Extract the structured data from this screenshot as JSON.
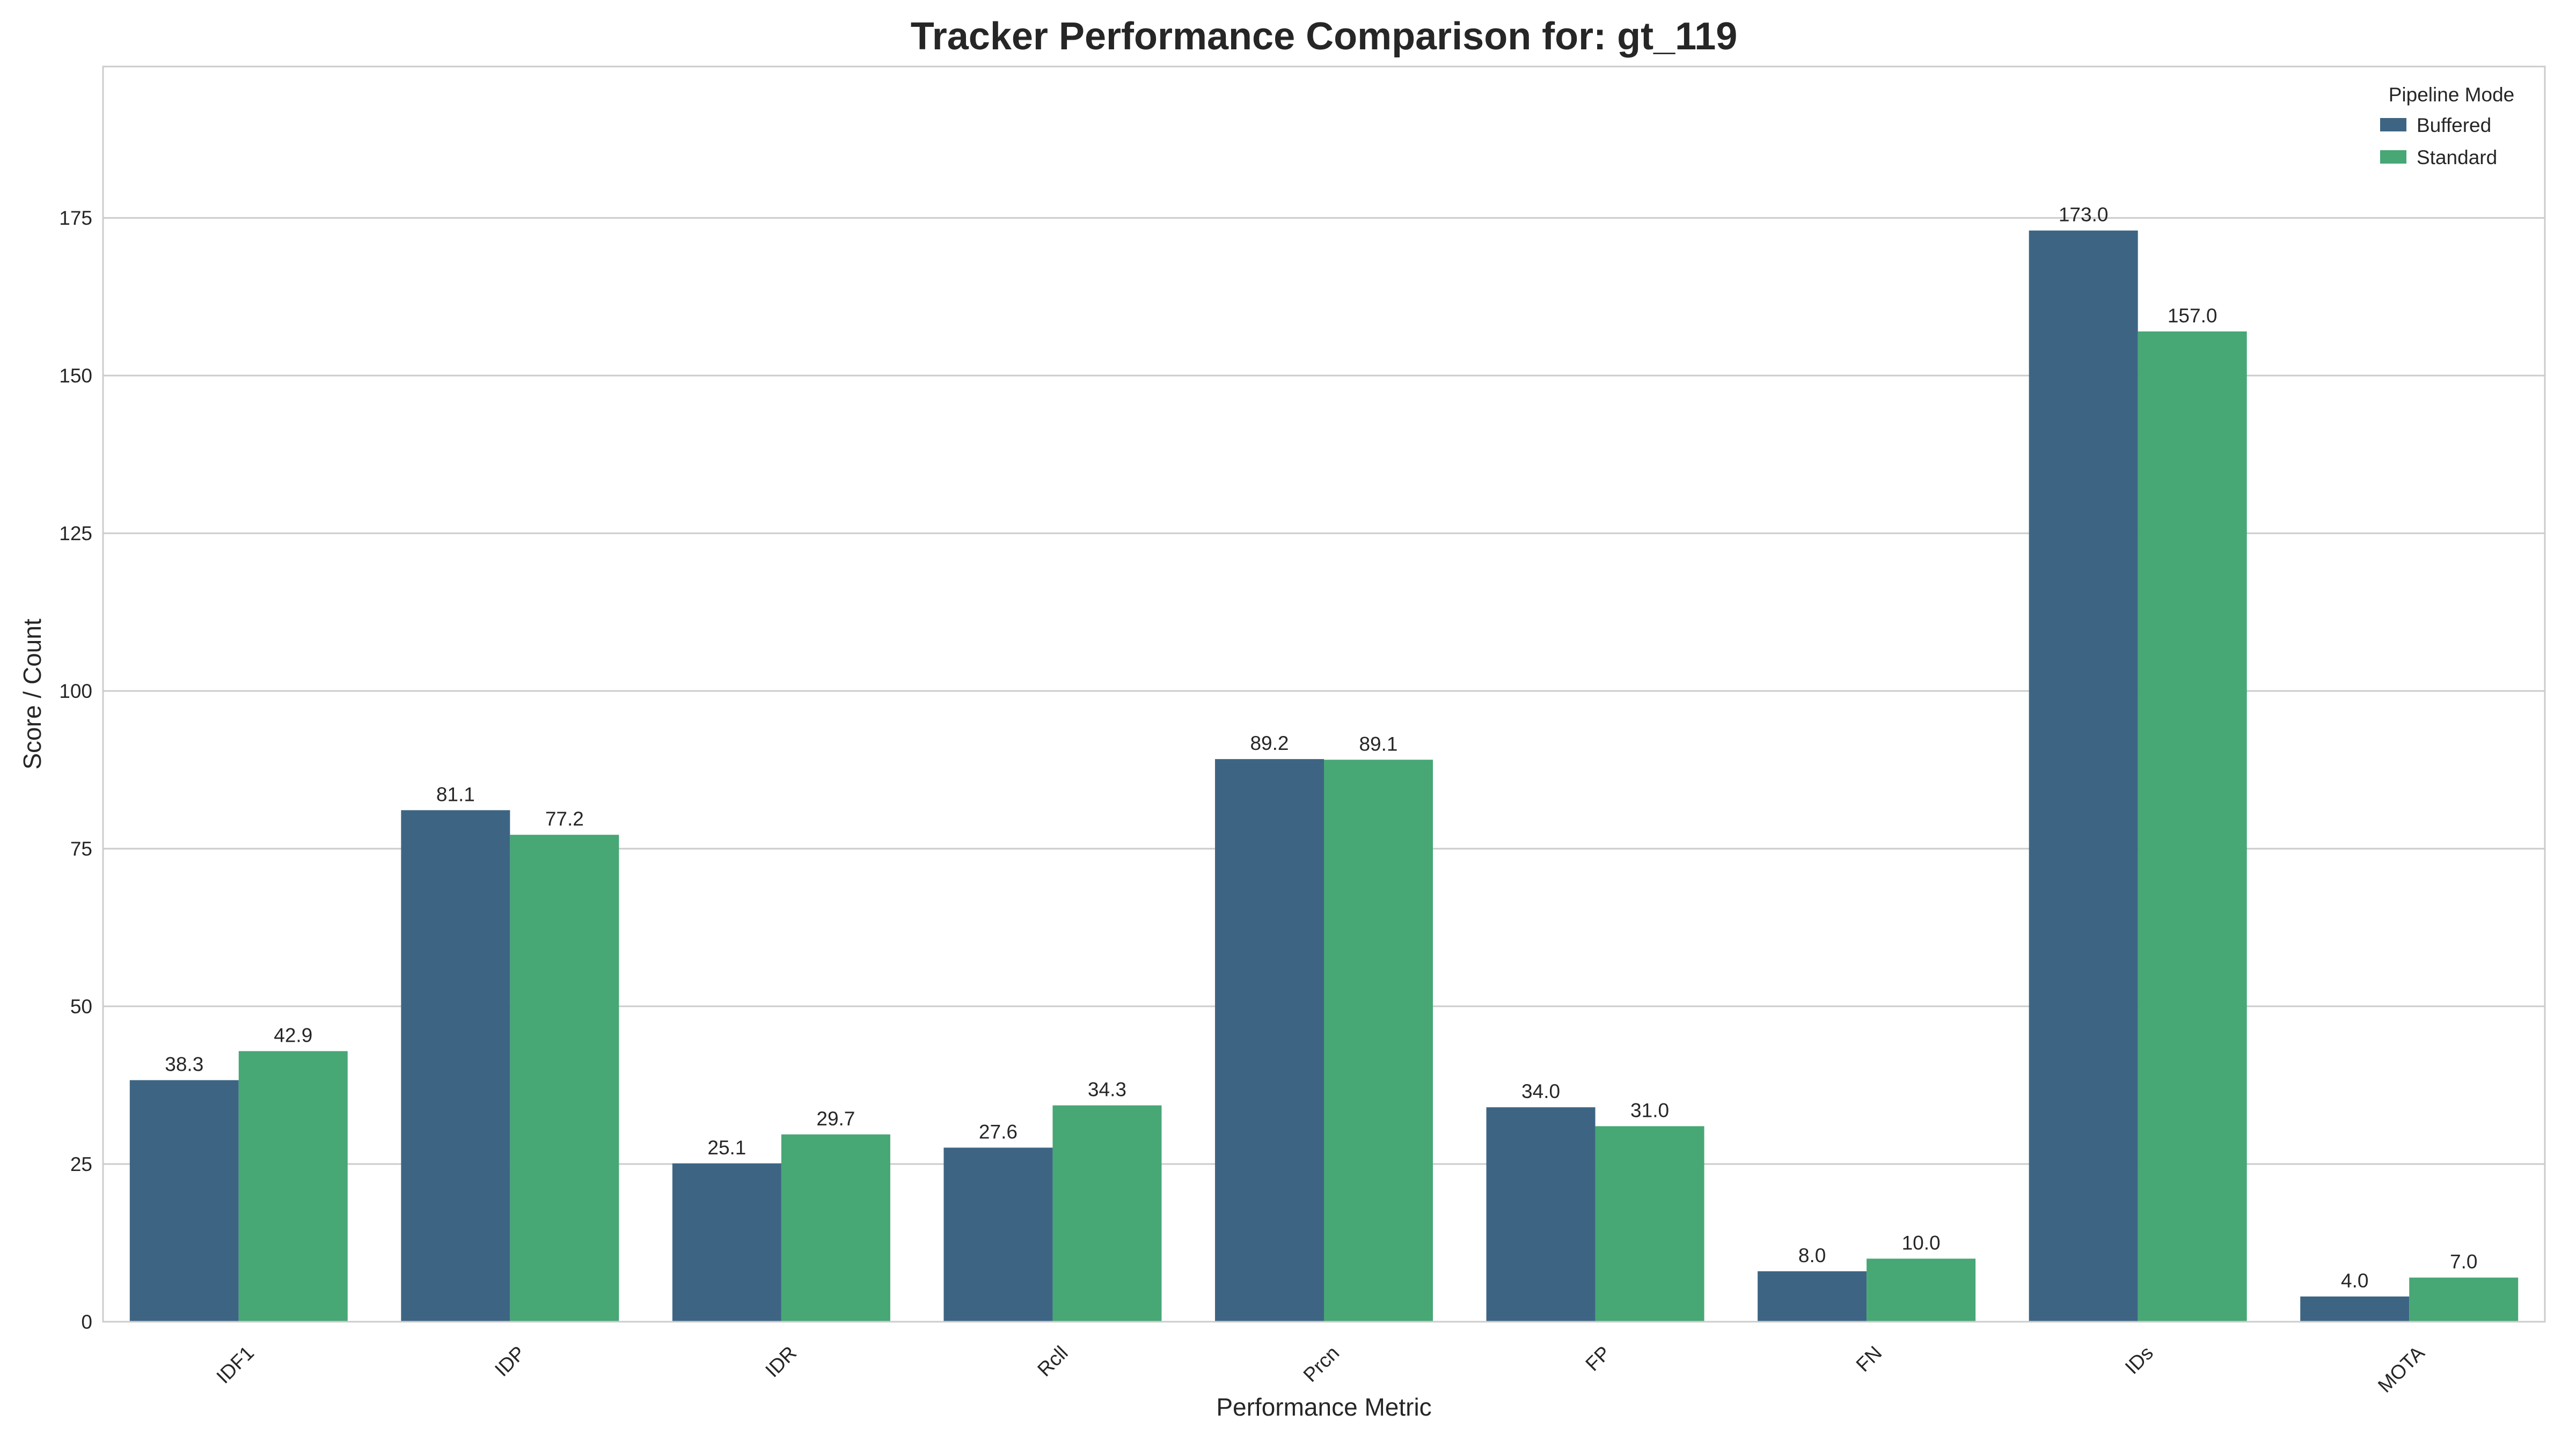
{
  "chart_data": {
    "type": "bar",
    "title": "Tracker Performance Comparison for: gt_119",
    "xlabel": "Performance Metric",
    "ylabel": "Score / Count",
    "categories": [
      "IDF1",
      "IDP",
      "IDR",
      "Rcll",
      "Prcn",
      "FP",
      "FN",
      "IDs",
      "MOTA"
    ],
    "series": [
      {
        "name": "Buffered",
        "color": "#3d6583",
        "values": [
          38.3,
          81.1,
          25.1,
          27.6,
          89.2,
          34.0,
          8.0,
          173.0,
          4.0
        ],
        "labels": [
          "38.3",
          "81.1",
          "25.1",
          "27.6",
          "89.2",
          "34.0",
          "8.0",
          "173.0",
          "4.0"
        ]
      },
      {
        "name": "Standard",
        "color": "#47a775",
        "values": [
          42.9,
          77.2,
          29.7,
          34.3,
          89.1,
          31.0,
          10.0,
          157.0,
          7.0
        ],
        "labels": [
          "42.9",
          "77.2",
          "29.7",
          "34.3",
          "89.1",
          "31.0",
          "10.0",
          "157.0",
          "7.0"
        ]
      }
    ],
    "ylim": [
      0,
      199
    ],
    "yticks": [
      0,
      25,
      50,
      75,
      100,
      125,
      150,
      175
    ],
    "ytick_labels": [
      "0",
      "25",
      "50",
      "75",
      "100",
      "125",
      "150",
      "175"
    ],
    "grid": "horizontal",
    "legend": {
      "title": "Pipeline Mode",
      "placement": "top-right"
    }
  }
}
